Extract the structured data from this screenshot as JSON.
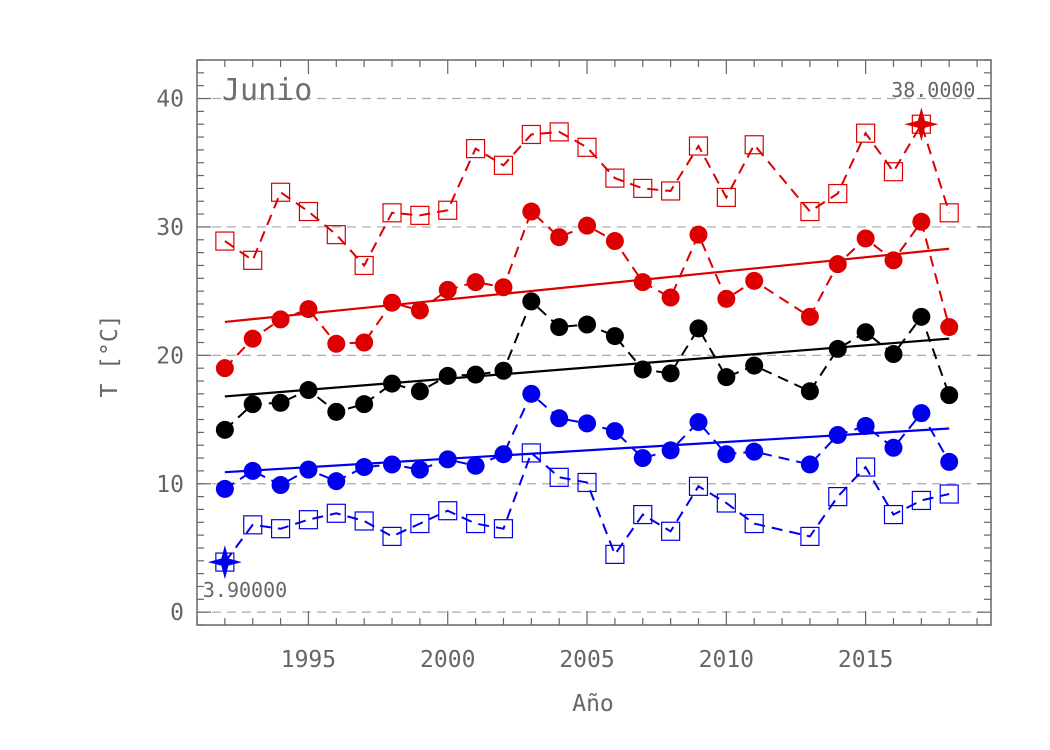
{
  "chart_data": {
    "type": "line",
    "title": "Junio",
    "xlabel": "Año",
    "ylabel": "T [°C]",
    "xlim": [
      1991,
      2019.5
    ],
    "ylim": [
      -1,
      43
    ],
    "xticks": [
      1995,
      2000,
      2005,
      2010,
      2015
    ],
    "yticks": [
      0,
      10,
      20,
      30,
      40
    ],
    "grid": "horizontal dashed at y ticks",
    "colors": {
      "max": "#dd0000",
      "mean": "#000000",
      "min": "#0000ee",
      "axis": "#666666",
      "grid": "#aaaaaa"
    },
    "x": [
      1992,
      1993,
      1994,
      1995,
      1996,
      1997,
      1998,
      1999,
      2000,
      2001,
      2002,
      2003,
      2004,
      2005,
      2006,
      2007,
      2008,
      2009,
      2010,
      2011,
      2013,
      2014,
      2015,
      2016,
      2017,
      2018
    ],
    "series": [
      {
        "key": "abs_max",
        "marker": "open-square",
        "line": "dashed",
        "color": "#dd0000",
        "values": [
          28.9,
          27.4,
          32.7,
          31.2,
          29.4,
          27.0,
          31.1,
          30.9,
          31.3,
          36.1,
          34.8,
          37.2,
          37.4,
          36.2,
          33.8,
          33.0,
          32.8,
          36.3,
          32.3,
          36.4,
          31.2,
          32.6,
          37.3,
          34.3,
          38.0,
          31.1
        ]
      },
      {
        "key": "mean_max",
        "marker": "filled-circle",
        "line": "dashed",
        "color": "#dd0000",
        "values": [
          19.0,
          21.3,
          22.8,
          23.6,
          20.9,
          21.0,
          24.1,
          23.5,
          25.1,
          25.7,
          25.3,
          31.2,
          29.2,
          30.1,
          28.9,
          25.7,
          24.5,
          29.4,
          24.4,
          25.8,
          23.0,
          27.1,
          29.1,
          27.4,
          30.4,
          22.2
        ]
      },
      {
        "key": "mean",
        "marker": "filled-circle",
        "line": "dashed",
        "color": "#000000",
        "values": [
          14.2,
          16.2,
          16.3,
          17.3,
          15.6,
          16.2,
          17.8,
          17.2,
          18.4,
          18.5,
          18.8,
          24.2,
          22.2,
          22.4,
          21.5,
          18.9,
          18.6,
          22.1,
          18.3,
          19.2,
          17.2,
          20.5,
          21.8,
          20.1,
          23.0,
          16.9
        ]
      },
      {
        "key": "mean_min",
        "marker": "filled-circle",
        "line": "dashed",
        "color": "#0000ee",
        "values": [
          9.6,
          11.0,
          9.9,
          11.1,
          10.2,
          11.3,
          11.5,
          11.1,
          11.9,
          11.4,
          12.3,
          17.0,
          15.1,
          14.7,
          14.1,
          12.0,
          12.6,
          14.8,
          12.3,
          12.5,
          11.5,
          13.8,
          14.5,
          12.8,
          15.5,
          11.7
        ]
      },
      {
        "key": "abs_min",
        "marker": "open-square",
        "line": "dashed",
        "color": "#0000ee",
        "values": [
          3.9,
          6.8,
          6.5,
          7.2,
          7.7,
          7.1,
          5.9,
          6.9,
          7.9,
          6.9,
          6.5,
          12.4,
          10.5,
          10.1,
          4.5,
          7.6,
          6.3,
          9.8,
          8.5,
          6.9,
          5.9,
          9.0,
          11.3,
          7.6,
          8.7,
          9.2
        ]
      }
    ],
    "trends": [
      {
        "key": "mean_max",
        "color": "#dd0000",
        "x": [
          1992,
          2018
        ],
        "y": [
          22.6,
          28.3
        ]
      },
      {
        "key": "mean",
        "color": "#000000",
        "x": [
          1992,
          2018
        ],
        "y": [
          16.8,
          21.3
        ]
      },
      {
        "key": "mean_min",
        "color": "#0000ee",
        "x": [
          1992,
          2018
        ],
        "y": [
          10.9,
          14.3
        ]
      }
    ],
    "extremes": [
      {
        "label": "38.0000",
        "x": 2017,
        "y": 38.0,
        "color": "#dd0000",
        "marker": "four-point-star"
      },
      {
        "label": "3.90000",
        "x": 1992,
        "y": 3.9,
        "color": "#0000ee",
        "marker": "four-point-star"
      }
    ]
  }
}
